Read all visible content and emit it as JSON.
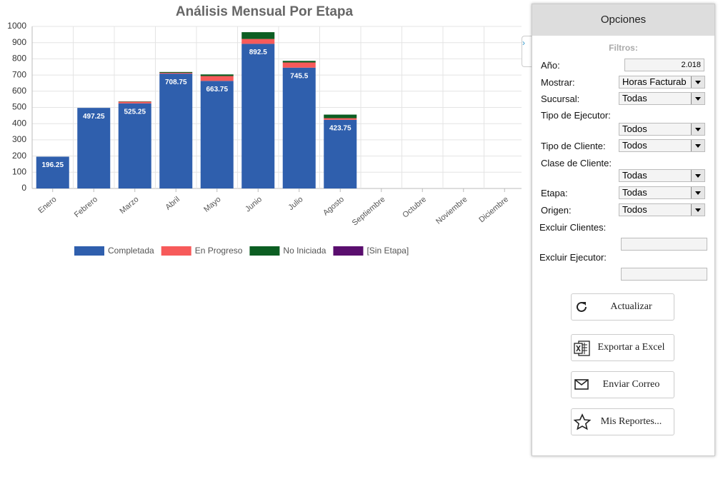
{
  "chart_data": {
    "type": "stacked_bar",
    "title": "Análisis Mensual Por Etapa",
    "categories": [
      "Enero",
      "Febrero",
      "Marzo",
      "Abril",
      "Mayo",
      "Junio",
      "Julio",
      "Agosto",
      "Septiembre",
      "Octubre",
      "Noviembre",
      "Diciembre"
    ],
    "series": [
      {
        "name": "Completada",
        "color": "#2f5fad",
        "show_labels": true,
        "values": [
          196.25,
          497.25,
          525.25,
          708.75,
          663.75,
          892.5,
          745.5,
          423.75,
          null,
          null,
          null,
          null
        ]
      },
      {
        "name": "En Progreso",
        "color": "#f75a5a",
        "values": [
          0,
          0,
          10,
          5,
          30,
          30,
          32,
          10,
          null,
          null,
          null,
          null
        ]
      },
      {
        "name": "No Iniciada",
        "color": "#0c5e22",
        "values": [
          0,
          0,
          2,
          5,
          10,
          42,
          10,
          22,
          null,
          null,
          null,
          null
        ]
      },
      {
        "name": "[Sin Etapa]",
        "color": "#5a0e6e",
        "values": [
          0,
          0,
          0,
          0,
          0,
          0,
          0,
          0,
          null,
          null,
          null,
          null
        ]
      }
    ],
    "ylim": [
      0,
      1000
    ],
    "yticks": [
      0,
      100,
      200,
      300,
      400,
      500,
      600,
      700,
      800,
      900,
      1000
    ],
    "grid": true,
    "legend": "bottom"
  },
  "panel": {
    "title": "Opciones",
    "filters_label": "Filtros:",
    "fields": [
      {
        "label": "Año:",
        "value": "2.018",
        "kind": "input"
      },
      {
        "label": "Mostrar:",
        "value": "Horas Facturab",
        "kind": "select"
      },
      {
        "label": "Sucursal:",
        "value": "Todas",
        "kind": "select"
      },
      {
        "label": "Tipo de Ejecutor:",
        "value": "Todos",
        "kind": "select"
      },
      {
        "label": "Tipo de Cliente:",
        "value": "Todos",
        "kind": "select"
      },
      {
        "label": "Clase de Cliente:",
        "value": "Todas",
        "kind": "select"
      },
      {
        "label": "Etapa:",
        "value": "Todas",
        "kind": "select"
      },
      {
        "label": "Origen:",
        "value": "Todos",
        "kind": "select"
      },
      {
        "label": "Excluir Clientes:",
        "kind": "input"
      },
      {
        "label": "Excluir Ejecutor:",
        "kind": "input"
      }
    ],
    "buttons": [
      "Actualizar",
      "Exportar a Excel",
      "Enviar Correo",
      "Mis Reportes..."
    ]
  }
}
